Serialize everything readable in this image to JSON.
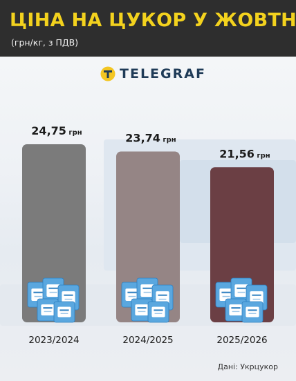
{
  "header": {
    "title": "ЦІНА НА ЦУКОР У ЖОВТНІ",
    "subtitle": "(грн/кг, з ПДВ)"
  },
  "logo": {
    "text": "TELEGRAF",
    "icon": "telegraf-t-icon"
  },
  "source": "Дані: Укрцукор",
  "colors": {
    "title": "#f3d21e",
    "header_bg": "#2e2e2e",
    "bars": [
      "#7b7b7b",
      "#958585",
      "#6b3f44"
    ]
  },
  "chart_data": {
    "type": "bar",
    "categories": [
      "2023/2024",
      "2024/2025",
      "2025/2026"
    ],
    "values": [
      24.75,
      23.74,
      21.56
    ],
    "value_labels": [
      "24,75",
      "23,74",
      "21,56"
    ],
    "unit": "грн",
    "title": "ЦІНА НА ЦУКОР У ЖОВТНІ",
    "subtitle": "(грн/кг, з ПДВ)",
    "grid": false,
    "ylabel": "",
    "xlabel": ""
  }
}
